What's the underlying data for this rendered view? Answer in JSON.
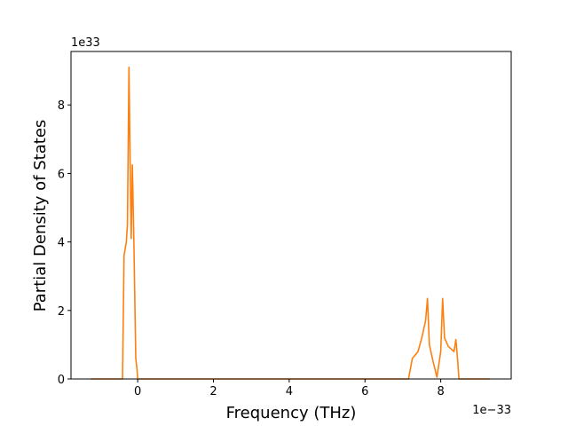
{
  "chart_data": {
    "type": "line",
    "x_label": "Frequency (THz)",
    "y_label": "Partial Density of States",
    "x_offset_label": "1e−33",
    "y_offset_label": "1e33",
    "x": [
      -1.24,
      -0.4,
      -0.36,
      -0.3,
      -0.27,
      -0.23,
      -0.19,
      -0.17,
      -0.14,
      -0.1,
      -0.05,
      -0.02,
      0.0,
      7.15,
      7.25,
      7.4,
      7.5,
      7.6,
      7.65,
      7.7,
      7.8,
      7.9,
      8.0,
      8.05,
      8.1,
      8.2,
      8.35,
      8.4,
      8.45,
      8.48,
      9.3
    ],
    "series": [
      {
        "color": "#ff7f0e",
        "values": [
          0,
          0,
          3.6,
          4.0,
          4.5,
          9.1,
          5.5,
          4.1,
          6.25,
          4.0,
          0.6,
          0.3,
          0,
          0,
          0.6,
          0.8,
          1.2,
          1.7,
          2.35,
          1.0,
          0.5,
          0.05,
          0.8,
          2.35,
          1.2,
          0.95,
          0.8,
          1.15,
          0.5,
          0,
          0
        ]
      }
    ],
    "xlim": [
      -1.76,
      9.86
    ],
    "ylim": [
      0,
      9.56
    ],
    "xticks": [
      0,
      2,
      4,
      6,
      8
    ],
    "yticks": [
      0,
      2,
      4,
      6,
      8
    ],
    "grid": false
  }
}
